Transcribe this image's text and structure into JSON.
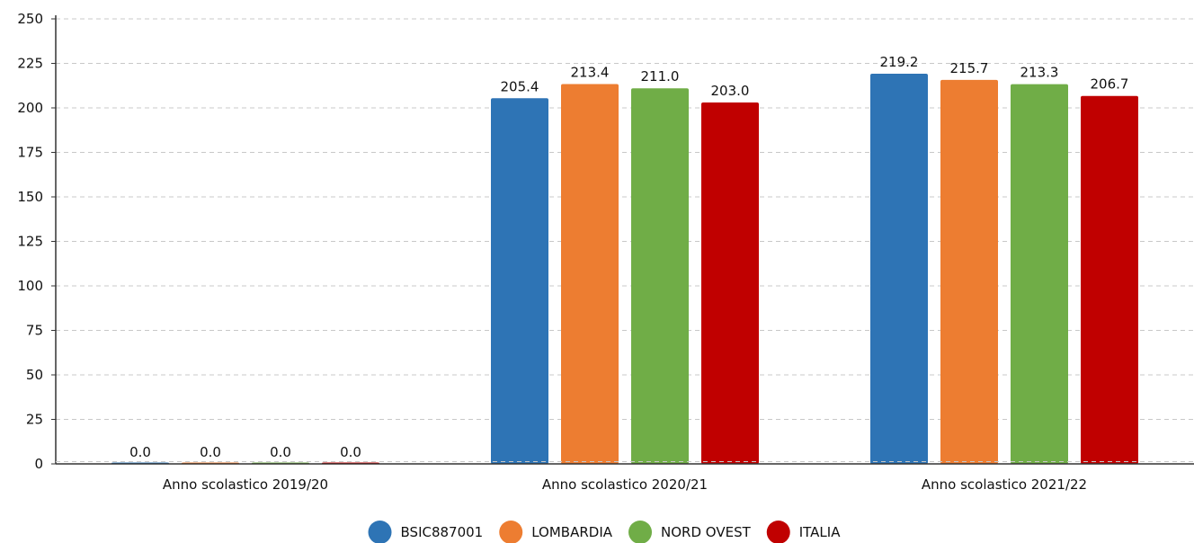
{
  "chart_data": {
    "type": "bar",
    "title": "",
    "xlabel": "",
    "ylabel": "",
    "categories": [
      "Anno scolastico 2019/20",
      "Anno scolastico 2020/21",
      "Anno scolastico 2021/22"
    ],
    "series": [
      {
        "name": "BSIC887001",
        "color": "#2e74b5",
        "values": [
          0.0,
          205.4,
          219.2
        ],
        "labels": [
          "0.0",
          "205.4",
          "219.2"
        ]
      },
      {
        "name": "LOMBARDIA",
        "color": "#ed7d31",
        "values": [
          0.0,
          213.4,
          215.7
        ],
        "labels": [
          "0.0",
          "213.4",
          "215.7"
        ]
      },
      {
        "name": "NORD OVEST",
        "color": "#70ad47",
        "values": [
          0.0,
          211.0,
          213.3
        ],
        "labels": [
          "0.0",
          "211.0",
          "213.3"
        ]
      },
      {
        "name": "ITALIA",
        "color": "#c00000",
        "values": [
          0.0,
          203.0,
          206.7
        ],
        "labels": [
          "0.0",
          "203.0",
          "206.7"
        ]
      }
    ],
    "ylim": [
      0,
      250
    ],
    "yticks": [
      "0",
      "25",
      "50",
      "75",
      "100",
      "125",
      "150",
      "175",
      "200",
      "225",
      "250"
    ],
    "grid": true,
    "legend_position": "bottom-center"
  }
}
